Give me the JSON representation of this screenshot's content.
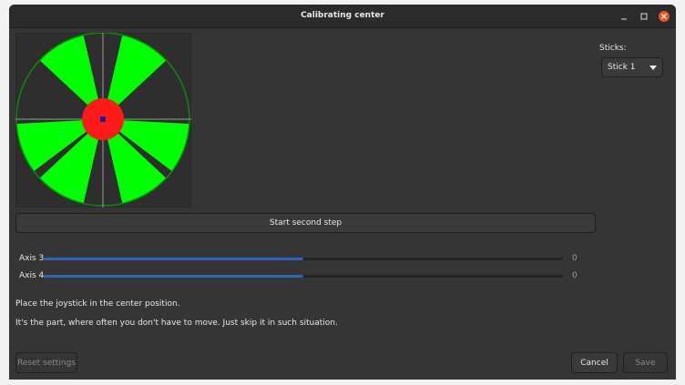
{
  "window": {
    "title": "Calibrating center"
  },
  "sticks": {
    "label": "Sticks:",
    "selected": "Stick 1"
  },
  "step_button": "Start second step",
  "axes": [
    {
      "label": "Axis 3",
      "value": 0
    },
    {
      "label": "Axis 4",
      "value": 0
    }
  ],
  "instructions": [
    "Place the joystick in the center position.",
    "It's the part, where often you don't have to move. Just skip it in such situation."
  ],
  "footer": {
    "reset": "Reset settings",
    "cancel": "Cancel",
    "save": "Save"
  }
}
